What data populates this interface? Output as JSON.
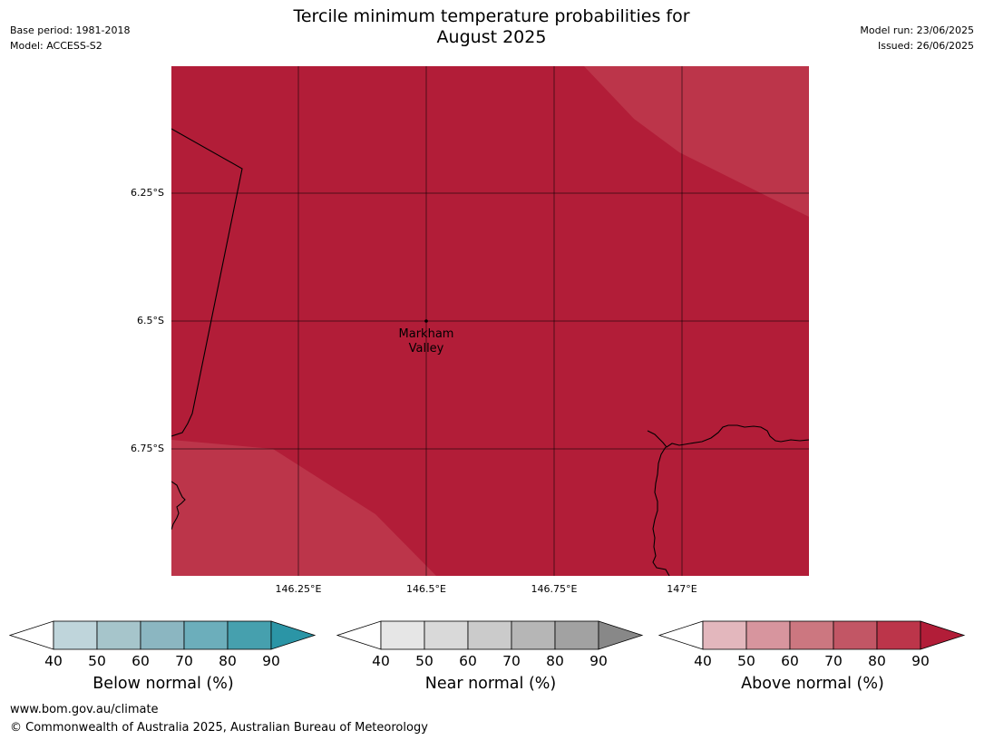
{
  "header": {
    "title_line1": "Tercile minimum temperature probabilities for",
    "title_line2": "August 2025",
    "base_period": "Base period: 1981-2018",
    "model": "Model: ACCESS-S2",
    "model_run": "Model run: 23/06/2025",
    "issued": "Issued: 26/06/2025"
  },
  "map": {
    "lat_labels": [
      "6.25°S",
      "6.5°S",
      "6.75°S"
    ],
    "lon_labels": [
      "146.25°E",
      "146.5°E",
      "146.75°E",
      "147°E"
    ],
    "place": {
      "line1": "Markham",
      "line2": "Valley"
    },
    "colors": {
      "above_80_90": "#b21d38",
      "above_70_80": "#bc354a",
      "land_outline": "#000000"
    }
  },
  "legends": [
    {
      "title": "Below normal (%)",
      "ticks": [
        "40",
        "50",
        "60",
        "70",
        "80",
        "90"
      ],
      "colors": [
        "#bfd5db",
        "#a6c5cb",
        "#8bb6c1",
        "#6caebb",
        "#46a0ae",
        "#2b95a6"
      ]
    },
    {
      "title": "Near normal (%)",
      "ticks": [
        "40",
        "50",
        "60",
        "70",
        "80",
        "90"
      ],
      "colors": [
        "#e6e6e6",
        "#d9d9d9",
        "#cbcbcb",
        "#b6b6b6",
        "#a2a2a2",
        "#888888"
      ]
    },
    {
      "title": "Above normal (%)",
      "ticks": [
        "40",
        "50",
        "60",
        "70",
        "80",
        "90"
      ],
      "colors": [
        "#e3b7bd",
        "#d7959e",
        "#cc7780",
        "#c25665",
        "#bc354a",
        "#b21d38"
      ]
    }
  ],
  "footer": {
    "website": "www.bom.gov.au/climate",
    "copyright": "© Commonwealth of Australia 2025, Australian Bureau of Meteorology"
  }
}
